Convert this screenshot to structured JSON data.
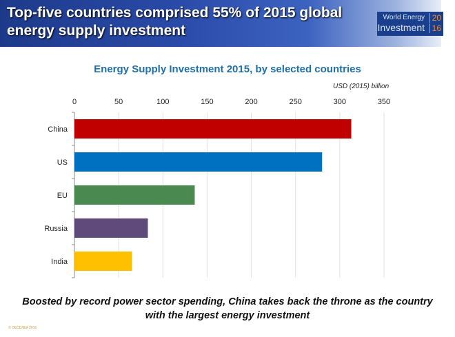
{
  "header": {
    "title_line1": "Top-five countries comprised 55% of 2015 global",
    "title_line2": "energy supply investment",
    "logo_line1": "World Energy",
    "logo_line2": "Investment",
    "logo_year_top": "20",
    "logo_year_bottom": "16"
  },
  "chart_data": {
    "type": "bar",
    "orientation": "horizontal",
    "title": "Energy Supply Investment 2015, by selected countries",
    "unit_label": "USD (2015) billion",
    "categories": [
      "China",
      "US",
      "EU",
      "Russia",
      "India"
    ],
    "values": [
      313,
      280,
      136,
      83,
      65
    ],
    "colors": [
      "#c00000",
      "#0070c0",
      "#4a8a50",
      "#604a7b",
      "#ffc000"
    ],
    "xlim": [
      0,
      350
    ],
    "xticks": [
      0,
      50,
      100,
      150,
      200,
      250,
      300,
      350
    ],
    "grid": true,
    "axis_position": "top"
  },
  "caption": {
    "line1": "Boosted by record power sector spending, China takes back the throne as the country",
    "line2": "with the largest energy investment"
  },
  "footer": "© OECD/IEA 2016"
}
